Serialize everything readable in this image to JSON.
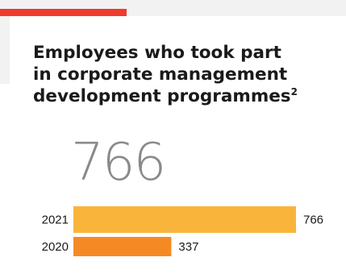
{
  "title_line1": "Employees who took part",
  "title_line2": "in corporate management",
  "title_line3": "development programmes",
  "title_footnote": "2",
  "highlight_value": "766",
  "colors": {
    "accent": "#f03a2e",
    "bar_2021": "#f9b53b",
    "bar_2020": "#f58a25",
    "header_band": "#f2f2f2",
    "big_number": "#8a8a8a"
  },
  "chart_data": {
    "type": "bar",
    "orientation": "horizontal",
    "title": "Employees who took part in corporate management development programmes",
    "categories": [
      "2021",
      "2020"
    ],
    "values": [
      766,
      337
    ],
    "value_labels": [
      "766",
      "337"
    ],
    "xlim": [
      0,
      766
    ],
    "grid": false,
    "legend": "none"
  }
}
